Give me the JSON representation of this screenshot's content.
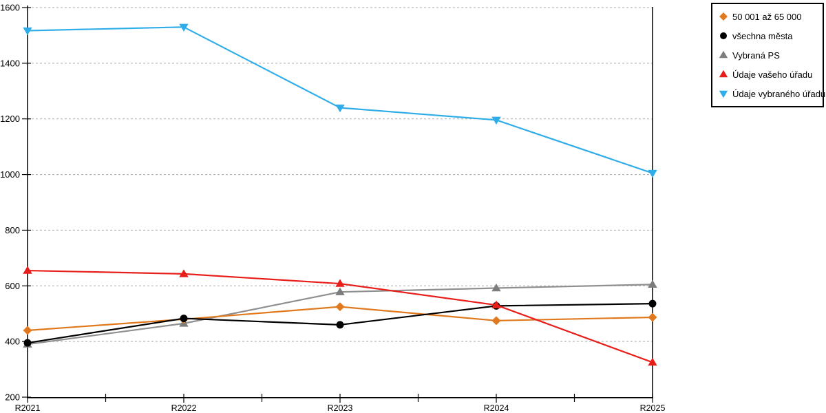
{
  "chart_data": {
    "type": "line",
    "title": "",
    "xlabel": "",
    "ylabel": "",
    "categories": [
      "R2021",
      "R2022",
      "R2023",
      "R2024",
      "R2025"
    ],
    "series": [
      {
        "name": "50 001 až 65 000",
        "marker": "diamond",
        "color": "#E0791E",
        "values": [
          440,
          480,
          525,
          475,
          487
        ]
      },
      {
        "name": "všechna města",
        "marker": "circle",
        "color": "#000000",
        "values": [
          395,
          483,
          460,
          528,
          536
        ]
      },
      {
        "name": "Vybraná PS",
        "marker": "triangle-up",
        "color": "#8F8F8F",
        "marker_color": "#7D7D7D",
        "values": [
          390,
          465,
          578,
          592,
          605
        ]
      },
      {
        "name": "Údaje vašeho úřadu",
        "marker": "triangle-up",
        "color": "#E81E1A",
        "values": [
          655,
          643,
          608,
          531,
          325
        ]
      },
      {
        "name": "Údaje vybraného úřadu",
        "marker": "triangle-down",
        "color": "#2FADE8",
        "values": [
          1517,
          1530,
          1240,
          1196,
          1005
        ]
      }
    ],
    "draw_order": [
      2,
      0,
      1,
      3,
      4
    ],
    "ylim": [
      200,
      1600
    ],
    "ytick_step": 200,
    "yticks": [
      200,
      400,
      600,
      800,
      1000,
      1200,
      1400,
      1600
    ],
    "grid": "horizontal-dashed",
    "grid_color": "#ABABAB",
    "axis_color": "#000000",
    "legend_position": "top-right",
    "x_minor_ticks": true
  }
}
